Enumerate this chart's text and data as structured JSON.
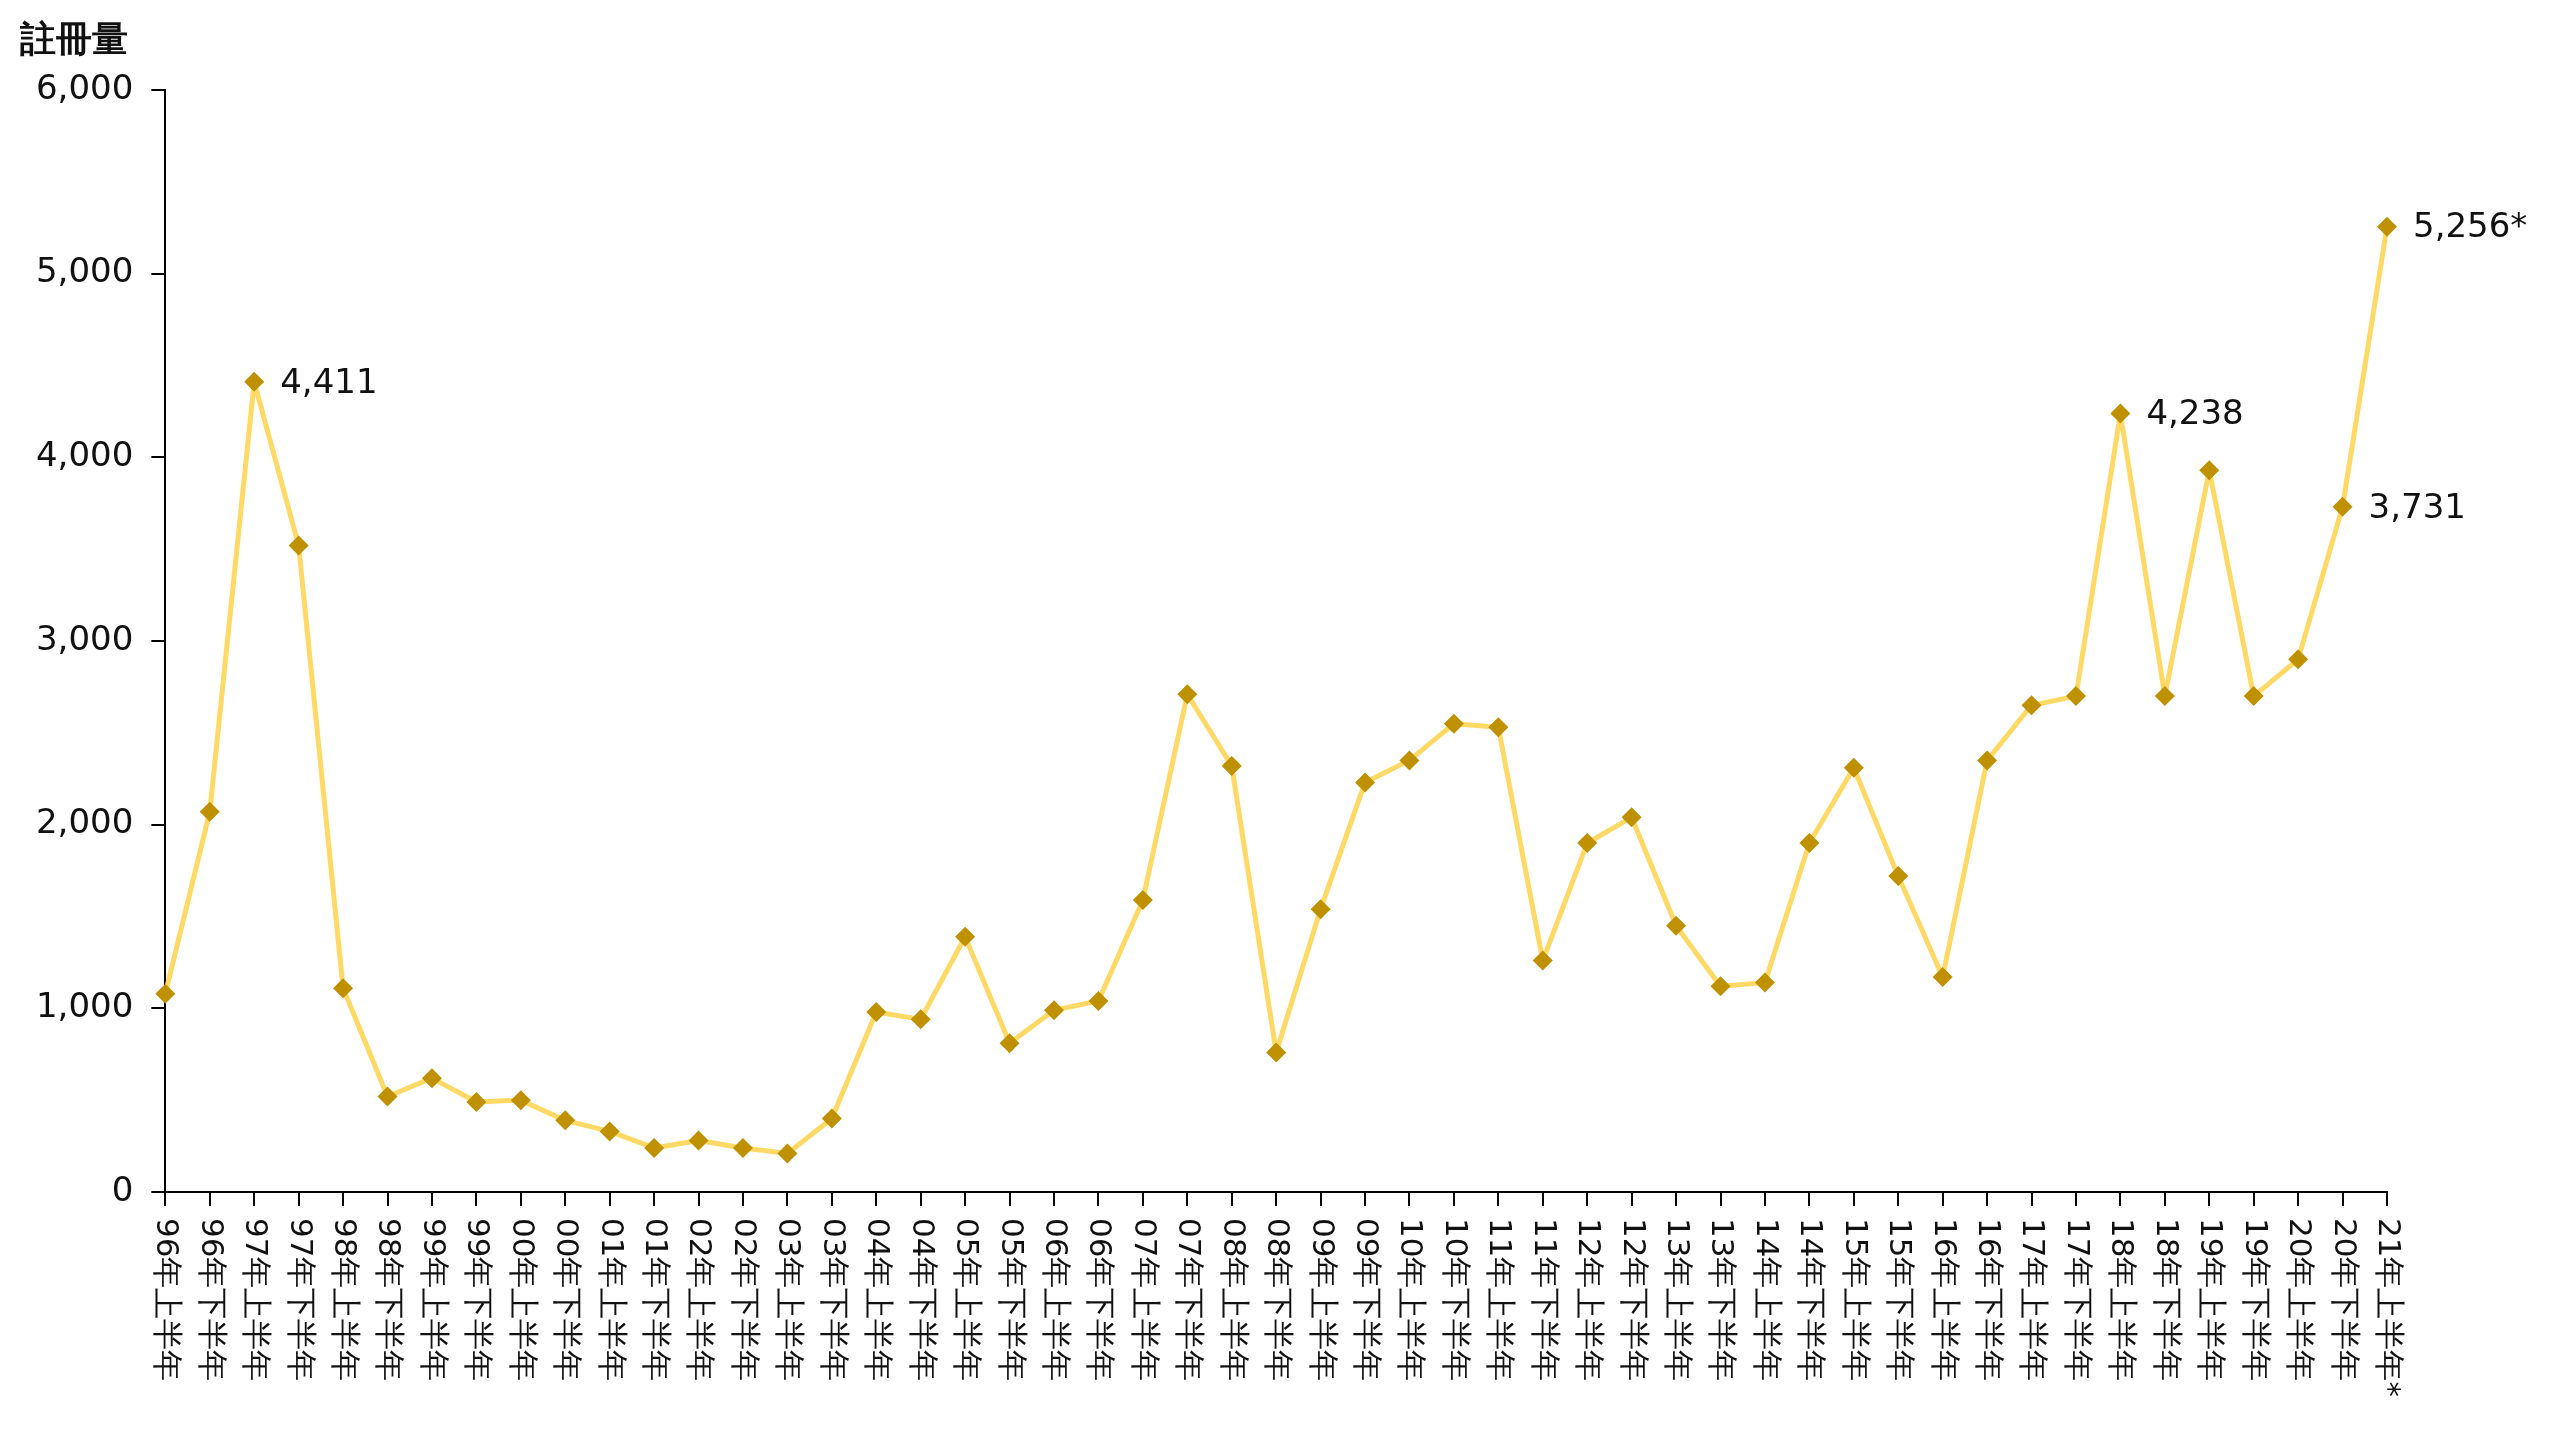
{
  "chart_data": {
    "type": "line",
    "ylabel": "註冊量",
    "categories": [
      "96年上半年",
      "96年下半年",
      "97年上半年",
      "97年下半年",
      "98年上半年",
      "98年下半年",
      "99年上半年",
      "99年下半年",
      "00年上半年",
      "00年下半年",
      "01年上半年",
      "01年下半年",
      "02年上半年",
      "02年下半年",
      "03年上半年",
      "03年下半年",
      "04年上半年",
      "04年下半年",
      "05年上半年",
      "05年下半年",
      "06年上半年",
      "06年下半年",
      "07年上半年",
      "07年下半年",
      "08年上半年",
      "08年下半年",
      "09年上半年",
      "09年下半年",
      "10年上半年",
      "10年下半年",
      "11年上半年",
      "11年下半年",
      "12年上半年",
      "12年下半年",
      "13年上半年",
      "13年下半年",
      "14年上半年",
      "14年下半年",
      "15年上半年",
      "15年下半年",
      "16年上半年",
      "16年下半年",
      "17年上半年",
      "17年下半年",
      "18年上半年",
      "18年下半年",
      "19年上半年",
      "19年下半年",
      "20年上半年",
      "20年下半年",
      "21年上半年*"
    ],
    "series": [
      {
        "color": "#ffd966",
        "colors": [
          "#bf9000",
          "#bf9000",
          "#bf9000",
          "#bf9000",
          "#bf9000",
          "#bf9000",
          "#bf9000",
          "#bf9000",
          "#bf9000",
          "#bf9000",
          "#bf9000",
          "#bf9000",
          "#bf9000",
          "#bf9000",
          "#bf9000",
          "#bf9000",
          "#bf9000",
          "#bf9000",
          "#bf9000",
          "#bf9000",
          "#bf9000",
          "#bf9000",
          "#bf9000",
          "#bf9000",
          "#bf9000",
          "#bf9000",
          "#bf9000",
          "#bf9000",
          "#bf9000",
          "#bf9000",
          "#bf9000",
          "#bf9000",
          "#bf9000",
          "#bf9000",
          "#bf9000",
          "#bf9000",
          "#bf9000",
          "#bf9000",
          "#bf9000",
          "#bf9000",
          "#bf9000",
          "#bf9000",
          "#bf9000",
          "#bf9000",
          "#bf9000",
          "#bf9000",
          "#bf9000",
          "#bf9000",
          "#bf9000",
          "#bf9000",
          "#bf9000"
        ],
        "values": [
          1080,
          2070,
          4411,
          3520,
          1110,
          520,
          620,
          490,
          500,
          390,
          330,
          240,
          280,
          240,
          210,
          400,
          980,
          940,
          1390,
          810,
          990,
          1040,
          1590,
          2710,
          2320,
          760,
          1540,
          2230,
          2350,
          2550,
          2530,
          1260,
          1900,
          2040,
          1450,
          1120,
          1140,
          1900,
          2310,
          1720,
          1170,
          2350,
          2650,
          2700,
          4238,
          2700,
          3930,
          2700,
          2900,
          3731,
          5256
        ],
        "value_labels": [
          null,
          null,
          "4,411",
          null,
          null,
          null,
          null,
          null,
          null,
          null,
          null,
          null,
          null,
          null,
          null,
          null,
          null,
          null,
          null,
          null,
          null,
          null,
          null,
          null,
          null,
          null,
          null,
          null,
          null,
          null,
          null,
          null,
          null,
          null,
          null,
          null,
          null,
          null,
          null,
          null,
          null,
          null,
          null,
          null,
          "4,238",
          null,
          null,
          null,
          null,
          "3,731",
          "5,256*"
        ]
      }
    ],
    "ylim": [
      0,
      6000
    ],
    "yticks": [
      0,
      {
        "value": 1000,
        "label": "1,000"
      },
      {
        "value": 2000,
        "label": "2,000"
      },
      {
        "value": 3000,
        "label": "3,000"
      },
      {
        "value": 4000,
        "label": "4,000"
      },
      {
        "value": 5000,
        "label": "5,000"
      },
      {
        "value": 6000,
        "label": "6,000"
      }
    ],
    "grid": false,
    "marker": "diamond",
    "line_style": "solid"
  }
}
